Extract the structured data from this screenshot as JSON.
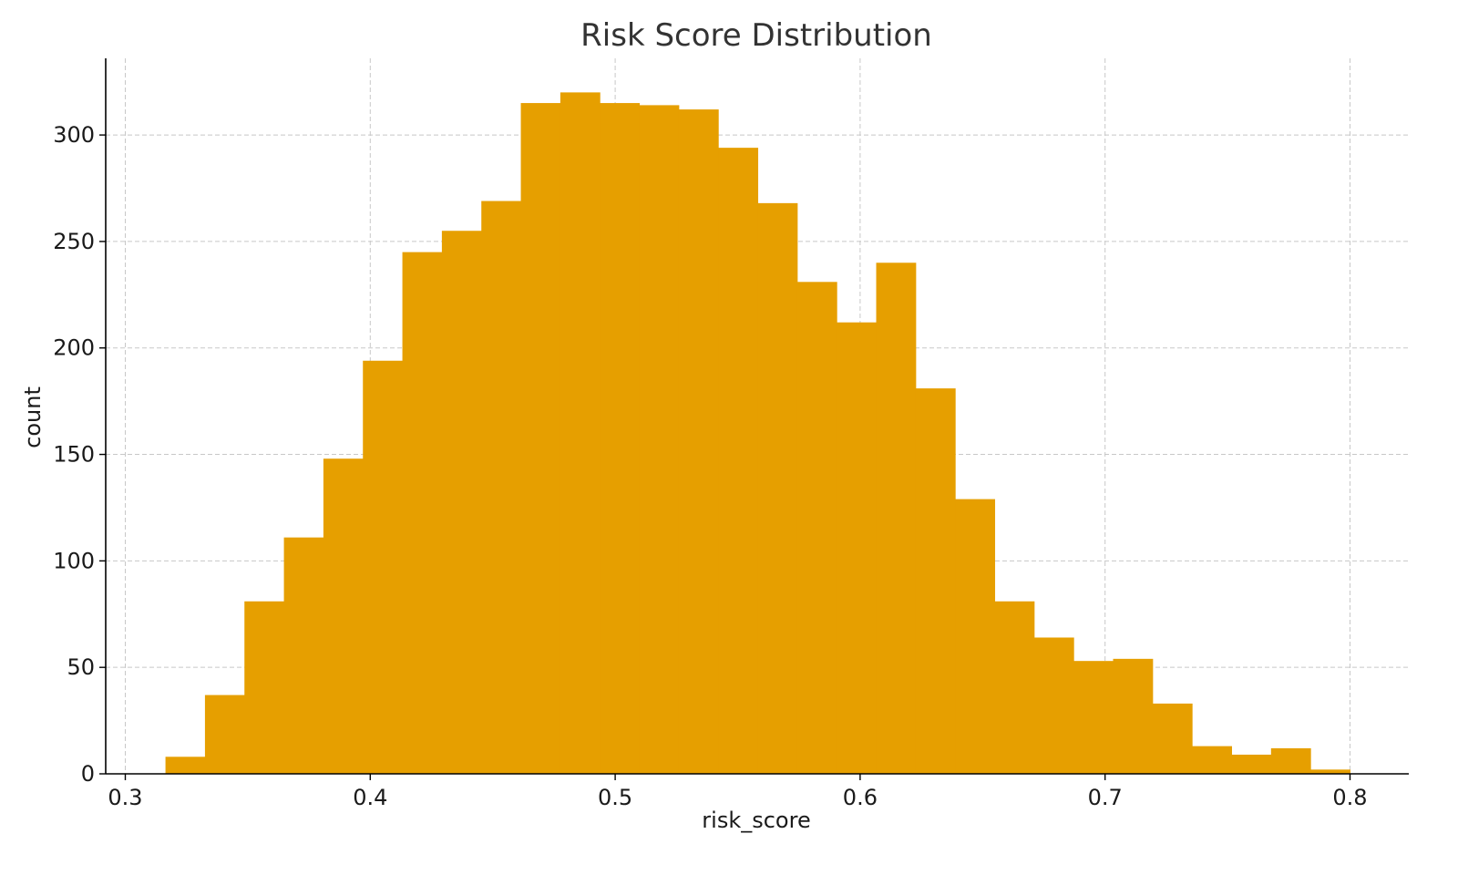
{
  "chart_data": {
    "type": "bar",
    "title": "Risk Score Distribution",
    "xlabel": "risk_score",
    "ylabel": "count",
    "xlim": [
      0.292,
      0.824
    ],
    "ylim": [
      0,
      336
    ],
    "x_ticks": [
      0.3,
      0.4,
      0.5,
      0.6,
      0.7,
      0.8
    ],
    "x_tick_labels": [
      "0.3",
      "0.4",
      "0.5",
      "0.6",
      "0.7",
      "0.8"
    ],
    "y_ticks": [
      0,
      50,
      100,
      150,
      200,
      250,
      300
    ],
    "y_tick_labels": [
      "0",
      "50",
      "100",
      "150",
      "200",
      "250",
      "300"
    ],
    "grid": true,
    "bar_color": "#E69F00",
    "bin_start": 0.3164,
    "bin_width": 0.01612,
    "counts": [
      8,
      37,
      81,
      111,
      148,
      194,
      245,
      255,
      269,
      315,
      320,
      315,
      314,
      312,
      294,
      268,
      231,
      212,
      240,
      181,
      129,
      81,
      64,
      53,
      54,
      33,
      13,
      9,
      12,
      2
    ]
  }
}
